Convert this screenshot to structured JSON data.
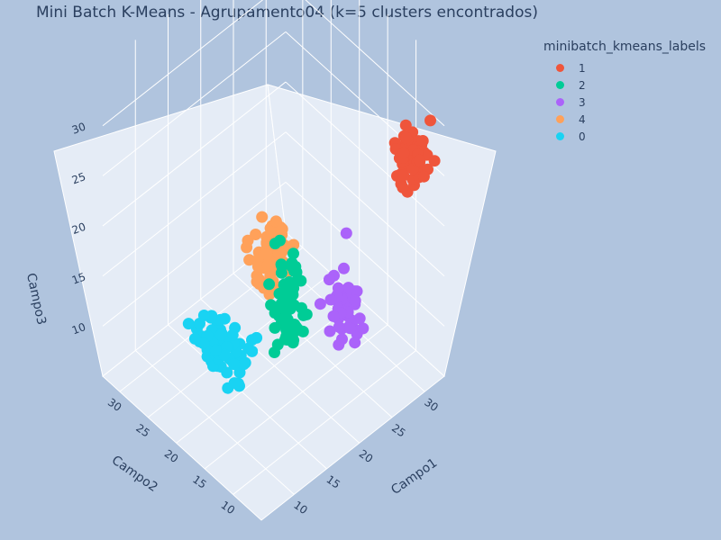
{
  "chart_data": {
    "type": "scatter",
    "subtype": "3d-scatter",
    "title": "Mini Batch K-Means - Agrupamento04 (k=5 clusters encontrados)",
    "legend": {
      "title": "minibatch_kmeans_labels",
      "placement": "top-right"
    },
    "axes": {
      "x": {
        "label": "Campo1",
        "range": [
          5,
          33
        ],
        "ticks": [
          10,
          15,
          20,
          25,
          30
        ]
      },
      "y": {
        "label": "Campo2",
        "range": [
          5,
          33
        ],
        "ticks": [
          10,
          15,
          20,
          25,
          30
        ]
      },
      "z": {
        "label": "Campo3",
        "range": [
          5,
          36
        ],
        "ticks": [
          10,
          15,
          20,
          25,
          30
        ]
      }
    },
    "grid": true,
    "series": [
      {
        "name": "1",
        "color": "#EF553B",
        "center": [
          29,
          6,
          28
        ],
        "spread": [
          2,
          2,
          2.5
        ],
        "count": 70
      },
      {
        "name": "2",
        "color": "#00CC96",
        "center": [
          12,
          8,
          22
        ],
        "spread": [
          2,
          2,
          5
        ],
        "count": 62
      },
      {
        "name": "3",
        "color": "#AB63FA",
        "center": [
          22,
          10,
          15
        ],
        "spread": [
          2,
          2,
          4
        ],
        "count": 45
      },
      {
        "name": "4",
        "color": "#FFA15A",
        "center": [
          8,
          7,
          29
        ],
        "spread": [
          2,
          2.5,
          3
        ],
        "count": 80
      },
      {
        "name": "0",
        "color": "#19D3F3",
        "center": [
          12,
          20,
          11
        ],
        "spread": [
          2,
          4,
          2
        ],
        "count": 75
      }
    ]
  }
}
